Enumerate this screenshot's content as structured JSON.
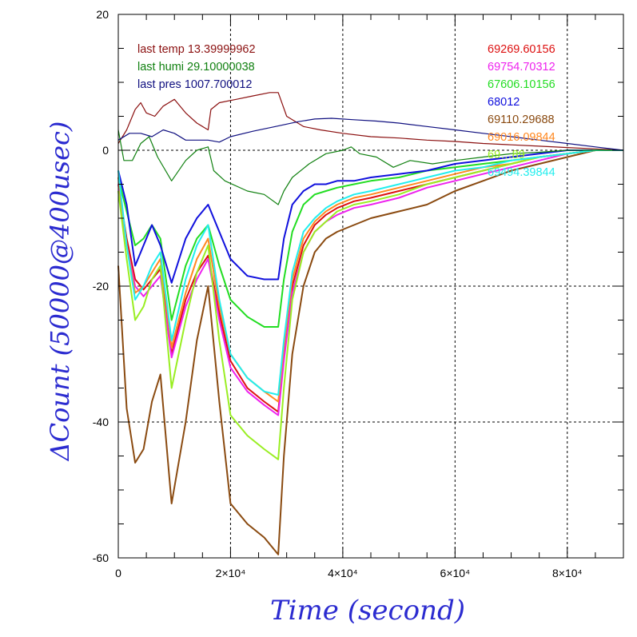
{
  "chart_data": {
    "type": "line",
    "xlabel": "Time (second)",
    "ylabel": "ΔCount (50000@400usec)",
    "xlim": [
      0,
      90000
    ],
    "ylim": [
      -60,
      20
    ],
    "x_ticks": [
      {
        "value": 0,
        "label": "0"
      },
      {
        "value": 20000,
        "label": "2×10⁴"
      },
      {
        "value": 40000,
        "label": "4×10⁴"
      },
      {
        "value": 60000,
        "label": "6×10⁴"
      },
      {
        "value": 80000,
        "label": "8×10⁴"
      }
    ],
    "y_ticks": [
      {
        "value": 20,
        "label": "20"
      },
      {
        "value": 0,
        "label": "0"
      },
      {
        "value": -20,
        "label": "-20"
      },
      {
        "value": -40,
        "label": "-40"
      },
      {
        "value": -60,
        "label": "-60"
      }
    ],
    "grid": true,
    "annotations": [
      {
        "text": "last temp 13.39999962",
        "color": "#8b1010"
      },
      {
        "text": "last humi 29.10000038",
        "color": "#108010"
      },
      {
        "text": "last pres 1007.700012",
        "color": "#101080"
      }
    ],
    "legend_position": "top-right",
    "series": [
      {
        "name": "69269.60156",
        "color": "#dd1010",
        "x": [
          0,
          1500,
          3000,
          4500,
          6000,
          7500,
          9500,
          12000,
          14000,
          16000,
          18000,
          20000,
          23000,
          26000,
          28500,
          29500,
          31000,
          33000,
          35000,
          37000,
          39000,
          42000,
          45000,
          50000,
          55000,
          60000,
          65000,
          70000,
          75000,
          80000,
          85000,
          90000
        ],
        "y": [
          -5,
          -13,
          -19,
          -20.5,
          -19,
          -17.5,
          -30,
          -22,
          -18,
          -15.5,
          -24,
          -31,
          -35,
          -37,
          -38.5,
          -30,
          -20,
          -14,
          -11,
          -9.5,
          -8.5,
          -7.5,
          -7,
          -6,
          -5,
          -4,
          -3,
          -2,
          -1,
          -0.5,
          0,
          0
        ]
      },
      {
        "name": "69754.70312",
        "color": "#ee22ee",
        "x": [
          0,
          1500,
          3000,
          4500,
          6000,
          7500,
          9500,
          12000,
          14000,
          16000,
          18000,
          20000,
          23000,
          26000,
          28500,
          29500,
          31000,
          33000,
          35000,
          37000,
          39000,
          42000,
          45000,
          50000,
          55000,
          60000,
          65000,
          70000,
          75000,
          80000,
          85000,
          90000
        ],
        "y": [
          -5,
          -14,
          -20,
          -21.5,
          -20,
          -18.5,
          -30.5,
          -23,
          -19,
          -16,
          -25,
          -32,
          -35.5,
          -37.5,
          -39,
          -31,
          -21,
          -15,
          -12,
          -10.5,
          -9.5,
          -8.5,
          -8,
          -7,
          -5.5,
          -4.5,
          -3.5,
          -2.5,
          -1.5,
          -0.5,
          0,
          0
        ]
      },
      {
        "name": "67606.10156",
        "color": "#22dd22",
        "x": [
          0,
          1500,
          3000,
          4500,
          6000,
          7500,
          9500,
          12000,
          14000,
          16000,
          18000,
          20000,
          23000,
          26000,
          28500,
          29500,
          31000,
          33000,
          35000,
          37000,
          39000,
          42000,
          45000,
          50000,
          55000,
          60000,
          65000,
          70000,
          75000,
          80000,
          85000,
          90000
        ],
        "y": [
          -4,
          -9,
          -14,
          -13,
          -11,
          -13,
          -25,
          -17,
          -13,
          -11,
          -17,
          -22,
          -24.5,
          -26,
          -26,
          -19,
          -12,
          -8,
          -6.5,
          -6,
          -5.5,
          -5,
          -4.5,
          -4,
          -3,
          -2.5,
          -2,
          -1.5,
          -1,
          -0.5,
          0,
          0
        ]
      },
      {
        "name": "68012",
        "color": "#1010dd",
        "x": [
          0,
          1500,
          3000,
          4500,
          6000,
          7500,
          9500,
          12000,
          14000,
          16000,
          18000,
          20000,
          23000,
          26000,
          28500,
          29500,
          31000,
          33000,
          35000,
          37000,
          39000,
          42000,
          45000,
          50000,
          55000,
          60000,
          65000,
          70000,
          75000,
          80000,
          85000,
          90000
        ],
        "y": [
          -3,
          -8,
          -17,
          -14,
          -11,
          -14,
          -19.5,
          -13,
          -10,
          -8,
          -12,
          -16,
          -18.5,
          -19,
          -19,
          -13,
          -8,
          -6,
          -5,
          -5,
          -4.5,
          -4.5,
          -4,
          -3.5,
          -3,
          -2,
          -1.5,
          -1,
          -0.5,
          0,
          0,
          0
        ]
      },
      {
        "name": "69110.29688",
        "color": "#8a4a10",
        "x": [
          0,
          1500,
          3000,
          4500,
          6000,
          7500,
          9500,
          12000,
          14000,
          16000,
          18000,
          20000,
          23000,
          26000,
          28500,
          29500,
          31000,
          33000,
          35000,
          37000,
          39000,
          42000,
          45000,
          50000,
          55000,
          60000,
          65000,
          70000,
          75000,
          80000,
          85000,
          90000
        ],
        "y": [
          -17,
          -38,
          -46,
          -44,
          -37,
          -33,
          -52,
          -40,
          -28,
          -20,
          -37,
          -52,
          -55,
          -57,
          -59.5,
          -45,
          -30,
          -20,
          -15,
          -13,
          -12,
          -11,
          -10,
          -9,
          -8,
          -6,
          -4.5,
          -3,
          -2,
          -1,
          0,
          0
        ]
      },
      {
        "name": "69016.09844",
        "color": "#ff8820",
        "x": [
          0,
          1500,
          3000,
          4500,
          6000,
          7500,
          9500,
          12000,
          14000,
          16000,
          18000,
          20000,
          23000,
          26000,
          28500,
          29500,
          31000,
          33000,
          35000,
          37000,
          39000,
          42000,
          45000,
          50000,
          55000,
          60000,
          65000,
          70000,
          75000,
          80000,
          85000,
          90000
        ],
        "y": [
          -4,
          -14,
          -21,
          -20,
          -18,
          -16,
          -29,
          -21,
          -16,
          -13,
          -23,
          -30,
          -33.5,
          -35.5,
          -37,
          -29,
          -19,
          -13,
          -10.5,
          -9,
          -8,
          -7,
          -6.5,
          -5.5,
          -4.5,
          -3.5,
          -2.5,
          -2,
          -1,
          -0.5,
          0,
          0
        ]
      },
      {
        "name": "69…89",
        "color": "#99ee22",
        "x": [
          0,
          1500,
          3000,
          4500,
          6000,
          7500,
          9500,
          12000,
          14000,
          16000,
          18000,
          20000,
          23000,
          26000,
          28500,
          29500,
          31000,
          33000,
          35000,
          37000,
          39000,
          42000,
          45000,
          50000,
          55000,
          60000,
          65000,
          70000,
          75000,
          80000,
          85000,
          90000
        ],
        "y": [
          -6,
          -16,
          -25,
          -23,
          -19,
          -17,
          -35,
          -25,
          -18,
          -14,
          -28,
          -39,
          -42,
          -44,
          -45.5,
          -35,
          -22,
          -15,
          -12,
          -10.5,
          -9,
          -8,
          -7.5,
          -6.5,
          -5,
          -4,
          -3,
          -2,
          -1,
          -0.5,
          0,
          0
        ]
      },
      {
        "name": "69494.39844",
        "color": "#22eeee",
        "x": [
          0,
          1500,
          3000,
          4500,
          6000,
          7500,
          9500,
          12000,
          14000,
          16000,
          18000,
          20000,
          23000,
          26000,
          28500,
          29500,
          31000,
          33000,
          35000,
          37000,
          39000,
          42000,
          45000,
          50000,
          55000,
          60000,
          65000,
          70000,
          75000,
          80000,
          85000,
          90000
        ],
        "y": [
          -3,
          -14,
          -22,
          -20,
          -17,
          -15,
          -28,
          -19,
          -14,
          -11,
          -22,
          -30,
          -33.5,
          -35.5,
          -36,
          -28,
          -18,
          -12,
          -10,
          -8.5,
          -7.5,
          -6.5,
          -6,
          -5,
          -4,
          -3,
          -2.5,
          -1.5,
          -1,
          -0.5,
          0,
          0
        ]
      },
      {
        "x": [
          0,
          1500,
          3000,
          4000,
          5000,
          6500,
          8000,
          10000,
          12000,
          14000,
          16000,
          16500,
          18000,
          21000,
          24000,
          27000,
          28500,
          30000,
          33000,
          36000,
          40000,
          45000,
          50000,
          55000,
          60000,
          65000,
          70000,
          75000,
          80000,
          85000,
          90000
        ],
        "y": [
          1,
          3,
          6,
          7,
          5.5,
          5,
          6.5,
          7.5,
          5.5,
          4,
          3,
          6,
          7,
          7.5,
          8,
          8.5,
          8.5,
          5,
          3.5,
          3,
          2.5,
          2,
          1.8,
          1.5,
          1.3,
          1,
          0.8,
          0.6,
          0.4,
          0.2,
          0
        ],
        "color": "#8b1010"
      },
      {
        "x": [
          0,
          1000,
          2500,
          4000,
          5500,
          7000,
          9500,
          12000,
          14000,
          16000,
          17000,
          19000,
          23000,
          26000,
          28500,
          29500,
          31000,
          34000,
          37000,
          40000,
          41500,
          43000,
          46000,
          49000,
          52000,
          56000,
          60000,
          65000,
          70000,
          75000,
          80000,
          85000,
          90000
        ],
        "y": [
          3,
          -1.5,
          -1.5,
          1,
          2,
          -1,
          -4.5,
          -1.5,
          0,
          0.5,
          -3,
          -4.5,
          -6,
          -6.5,
          -8,
          -6,
          -4,
          -2,
          -0.5,
          0,
          0.5,
          -0.5,
          -1,
          -2.5,
          -1.5,
          -2,
          -1.5,
          -1,
          -0.5,
          -0.3,
          0,
          0,
          0
        ],
        "color": "#108010"
      },
      {
        "x": [
          0,
          2000,
          4000,
          6000,
          8000,
          10000,
          12000,
          14000,
          16000,
          18000,
          20000,
          24000,
          28000,
          32000,
          35000,
          38000,
          42000,
          46000,
          50000,
          55000,
          60000,
          65000,
          70000,
          75000,
          80000,
          85000,
          90000
        ],
        "y": [
          1.5,
          2.5,
          2.5,
          2,
          3,
          2.5,
          1.5,
          1.5,
          1.5,
          1.2,
          2,
          2.8,
          3.5,
          4.2,
          4.6,
          4.7,
          4.5,
          4.3,
          4,
          3.5,
          3,
          2.5,
          2,
          1.5,
          1,
          0.5,
          0
        ],
        "color": "#101080"
      }
    ]
  }
}
